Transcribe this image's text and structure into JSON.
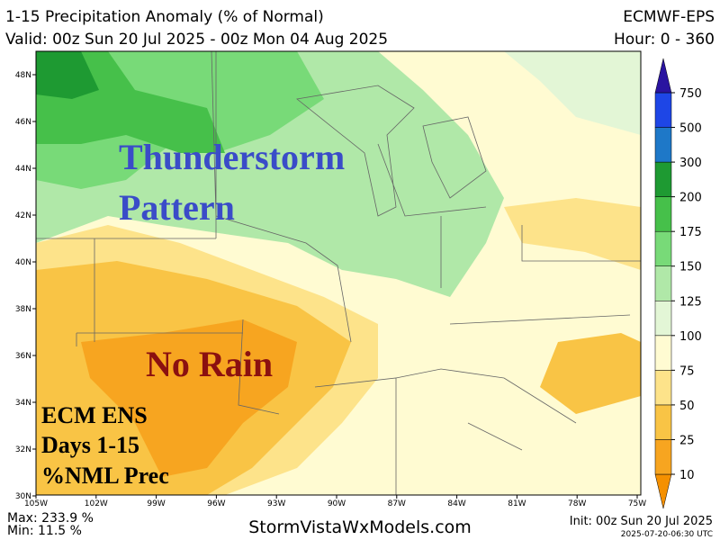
{
  "header": {
    "title": "1-15 Precipitation Anomaly (% of Normal)",
    "model": "ECMWF-EPS",
    "valid": "Valid: 00z Sun 20 Jul 2025 - 00z Mon 04 Aug 2025",
    "hours": "Hour: 0 - 360"
  },
  "map": {
    "lat_labels": [
      "48N",
      "46N",
      "44N",
      "42N",
      "40N",
      "38N",
      "36N",
      "34N",
      "32N",
      "30N"
    ],
    "lon_labels": [
      "105W",
      "102W",
      "99W",
      "96W",
      "93W",
      "90W",
      "87W",
      "84W",
      "81W",
      "78W",
      "75W"
    ],
    "annotations": {
      "storm": [
        "Thunderstorm",
        "Pattern"
      ],
      "dry": "No Rain",
      "legend": [
        "ECM ENS",
        "Days 1-15",
        "%NML Prec"
      ]
    }
  },
  "colorbar": {
    "levels": [
      10,
      25,
      50,
      75,
      100,
      125,
      150,
      175,
      200,
      300,
      500,
      750
    ],
    "colors": [
      "#f59000",
      "#f7a520",
      "#f9c445",
      "#fde38a",
      "#fffbd2",
      "#e3f6d6",
      "#b0e8a8",
      "#78da78",
      "#46c04a",
      "#1e9a32",
      "#1e78c8",
      "#1e46e6",
      "#2a14a0"
    ]
  },
  "footer": {
    "max": "Max: 233.9 %",
    "min": "Min: 11.5 %",
    "site": "StormVistaWxModels.com",
    "init": "Init: 00z Sun 20 Jul 2025",
    "stamp": "2025-07-20-06:30 UTC"
  }
}
